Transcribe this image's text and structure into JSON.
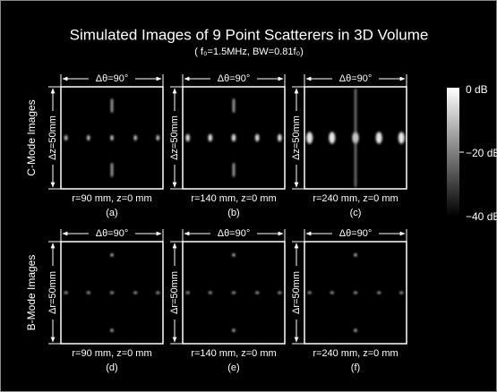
{
  "title": "Simulated Images of 9 Point Scatterers in 3D Volume",
  "subtitle": "( f₀=1.5MHz, BW=0.81f₀)",
  "colorbar": {
    "labels": [
      "0 dB",
      "−20 dB",
      "−40 dB"
    ]
  },
  "rows": [
    {
      "label": "C-Mode Images",
      "panels": [
        {
          "top": "Δθ=90°",
          "side": "Δz=50mm",
          "caption": "r=90 mm, z=0 mm",
          "letter": "(a)"
        },
        {
          "top": "Δθ=90°",
          "side": "Δz=50mm",
          "caption": "r=140 mm, z=0 mm",
          "letter": "(b)"
        },
        {
          "top": "Δθ=90°",
          "side": "Δz=50mm",
          "caption": "r=240 mm, z=0 mm",
          "letter": "(c)"
        }
      ]
    },
    {
      "label": "B-Mode Images",
      "panels": [
        {
          "top": "Δθ=90°",
          "side": "Δr=50mm",
          "caption": "r=90 mm, z=0 mm",
          "letter": "(d)"
        },
        {
          "top": "Δθ=90°",
          "side": "Δr=50mm",
          "caption": "r=140 mm, z=0 mm",
          "letter": "(e)"
        },
        {
          "top": "Δθ=90°",
          "side": "Δr=50mm",
          "caption": "r=240 mm, z=0 mm",
          "letter": "(f)"
        }
      ]
    }
  ]
}
